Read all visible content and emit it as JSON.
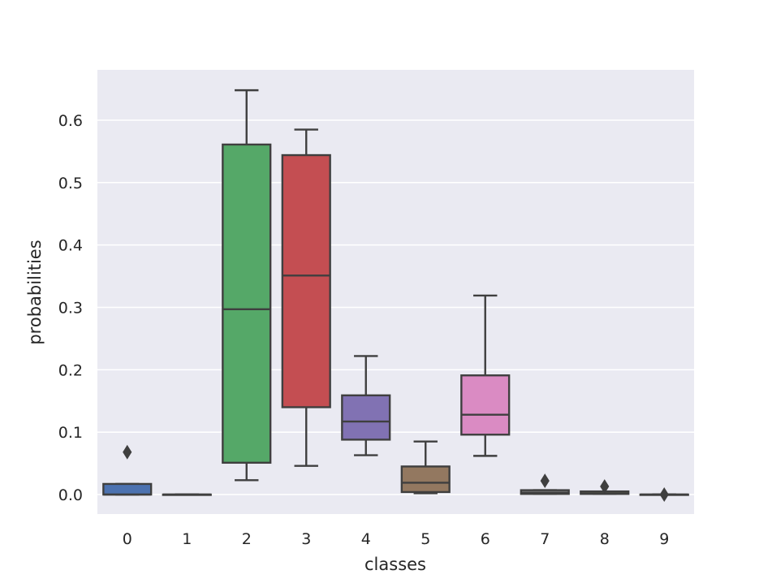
{
  "chart_data": {
    "type": "box",
    "xlabel": "classes",
    "ylabel": "probabilities",
    "ylim": [
      -0.03,
      0.68
    ],
    "yticks": [
      0.0,
      0.1,
      0.2,
      0.3,
      0.4,
      0.5,
      0.6
    ],
    "ytick_labels": [
      "0.0",
      "0.1",
      "0.2",
      "0.3",
      "0.4",
      "0.5",
      "0.6"
    ],
    "grid": true,
    "categories": [
      "0",
      "1",
      "2",
      "3",
      "4",
      "5",
      "6",
      "7",
      "8",
      "9"
    ],
    "boxes": [
      {
        "category": "0",
        "whisker_low": 0.0,
        "q1": 0.0,
        "median": 0.0,
        "q3": 0.017,
        "whisker_high": 0.017,
        "outliers": [
          0.068
        ],
        "color": "#4c72b0"
      },
      {
        "category": "1",
        "whisker_low": 0.0,
        "q1": 0.0,
        "median": 0.0,
        "q3": 0.0,
        "whisker_high": 0.0,
        "outliers": [],
        "color": "#dd8452"
      },
      {
        "category": "2",
        "whisker_low": 0.023,
        "q1": 0.051,
        "median": 0.297,
        "q3": 0.561,
        "whisker_high": 0.648,
        "outliers": [],
        "color": "#55a868"
      },
      {
        "category": "3",
        "whisker_low": 0.046,
        "q1": 0.14,
        "median": 0.351,
        "q3": 0.544,
        "whisker_high": 0.585,
        "outliers": [],
        "color": "#c44e52"
      },
      {
        "category": "4",
        "whisker_low": 0.063,
        "q1": 0.088,
        "median": 0.117,
        "q3": 0.159,
        "whisker_high": 0.222,
        "outliers": [],
        "color": "#8172b3"
      },
      {
        "category": "5",
        "whisker_low": 0.002,
        "q1": 0.004,
        "median": 0.019,
        "q3": 0.045,
        "whisker_high": 0.085,
        "outliers": [],
        "color": "#937860"
      },
      {
        "category": "6",
        "whisker_low": 0.062,
        "q1": 0.096,
        "median": 0.128,
        "q3": 0.191,
        "whisker_high": 0.319,
        "outliers": [],
        "color": "#da8bc3"
      },
      {
        "category": "7",
        "whisker_low": 0.001,
        "q1": 0.001,
        "median": 0.003,
        "q3": 0.007,
        "whisker_high": 0.007,
        "outliers": [
          0.022
        ],
        "color": "#8c8c8c"
      },
      {
        "category": "8",
        "whisker_low": 0.001,
        "q1": 0.001,
        "median": 0.002,
        "q3": 0.005,
        "whisker_high": 0.005,
        "outliers": [
          0.013
        ],
        "color": "#ccb974"
      },
      {
        "category": "9",
        "whisker_low": 0.0,
        "q1": 0.0,
        "median": 0.0,
        "q3": 0.0,
        "whisker_high": 0.0,
        "outliers": [
          0.0
        ],
        "color": "#64b5cd"
      }
    ]
  }
}
